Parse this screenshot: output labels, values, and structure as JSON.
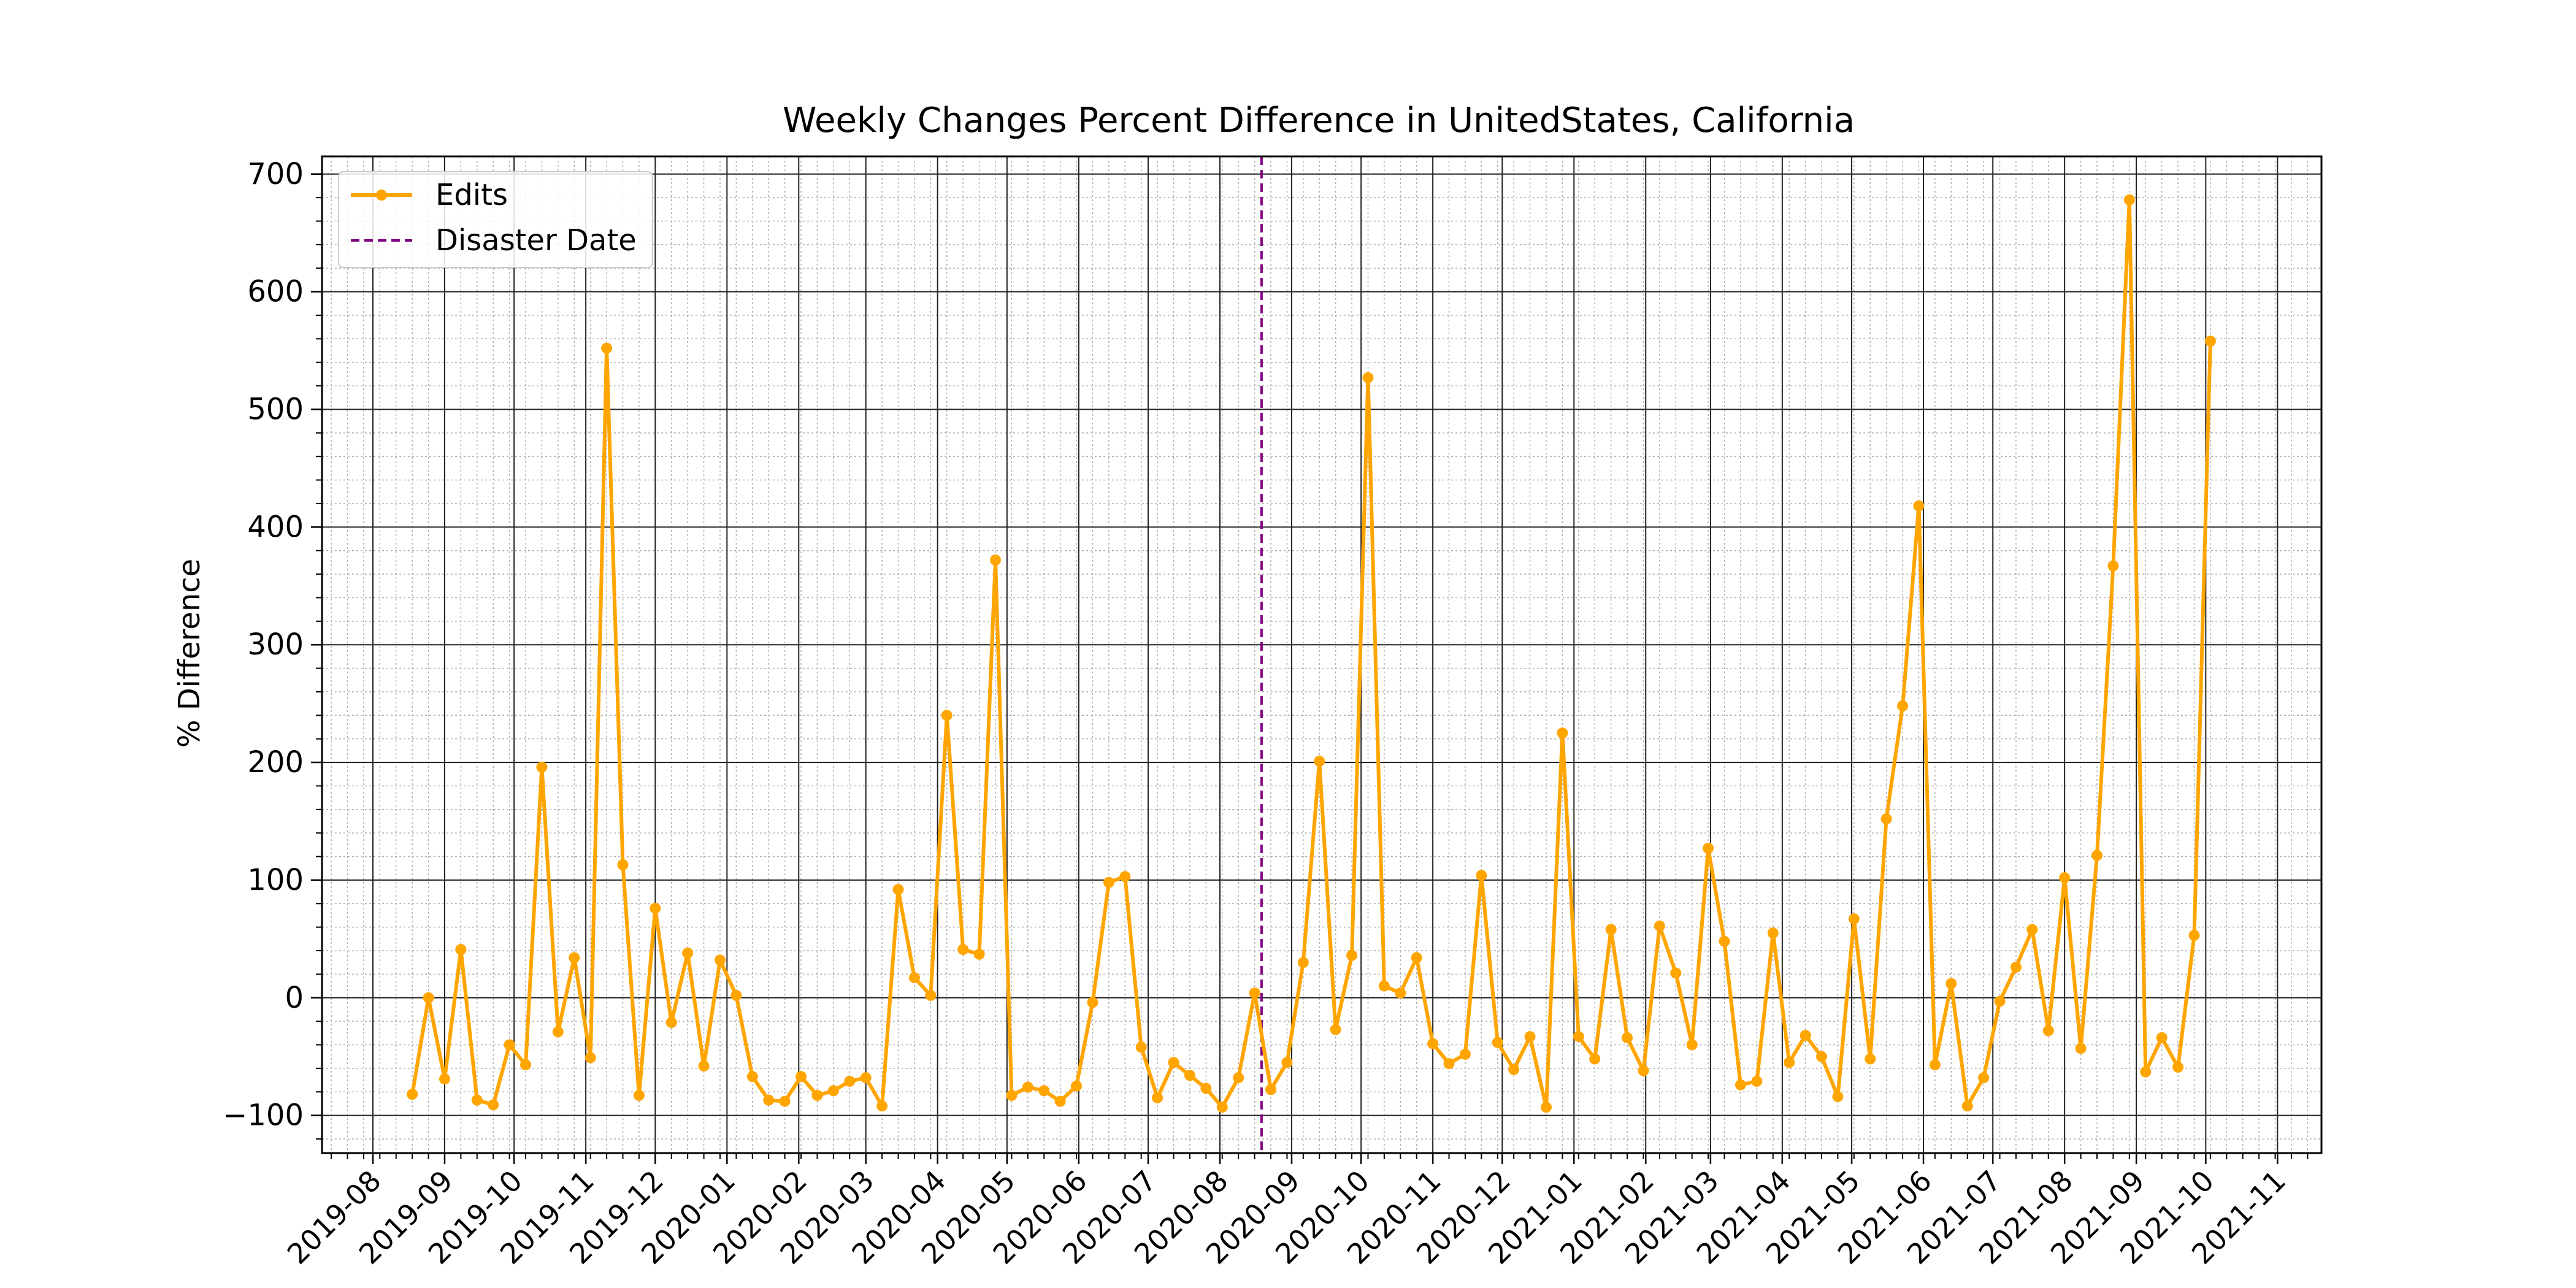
{
  "chart_data": {
    "type": "line",
    "title": "Weekly Changes Percent Difference in UnitedStates, California",
    "xlabel": "",
    "ylabel": "% Difference",
    "xlim": [
      "2019-07-10",
      "2021-11-20"
    ],
    "ylim": [
      -132,
      715
    ],
    "x_ticks": [
      "2019-08",
      "2019-09",
      "2019-10",
      "2019-11",
      "2019-12",
      "2020-01",
      "2020-02",
      "2020-03",
      "2020-04",
      "2020-05",
      "2020-06",
      "2020-07",
      "2020-08",
      "2020-09",
      "2020-10",
      "2020-11",
      "2020-12",
      "2021-01",
      "2021-02",
      "2021-03",
      "2021-04",
      "2021-05",
      "2021-06",
      "2021-07",
      "2021-08",
      "2021-09",
      "2021-10",
      "2021-11"
    ],
    "y_ticks": [
      -100,
      0,
      100,
      200,
      300,
      400,
      500,
      600,
      700
    ],
    "grid": "major and minor",
    "legend_placement": "upper left",
    "disaster_date": "2020-08-19",
    "series": [
      {
        "name": "Edits",
        "color": "#FFA500",
        "marker": "circle",
        "x": [
          "2019-08-18",
          "2019-08-25",
          "2019-09-01",
          "2019-09-08",
          "2019-09-15",
          "2019-09-22",
          "2019-09-29",
          "2019-10-06",
          "2019-10-13",
          "2019-10-20",
          "2019-10-27",
          "2019-11-03",
          "2019-11-10",
          "2019-11-17",
          "2019-11-24",
          "2019-12-01",
          "2019-12-08",
          "2019-12-15",
          "2019-12-22",
          "2019-12-29",
          "2020-01-05",
          "2020-01-12",
          "2020-01-19",
          "2020-01-26",
          "2020-02-02",
          "2020-02-09",
          "2020-02-16",
          "2020-02-23",
          "2020-03-01",
          "2020-03-08",
          "2020-03-15",
          "2020-03-22",
          "2020-03-29",
          "2020-04-05",
          "2020-04-12",
          "2020-04-19",
          "2020-04-26",
          "2020-05-03",
          "2020-05-10",
          "2020-05-17",
          "2020-05-24",
          "2020-05-31",
          "2020-06-07",
          "2020-06-14",
          "2020-06-21",
          "2020-06-28",
          "2020-07-05",
          "2020-07-12",
          "2020-07-19",
          "2020-07-26",
          "2020-08-02",
          "2020-08-09",
          "2020-08-16",
          "2020-08-23",
          "2020-08-30",
          "2020-09-06",
          "2020-09-13",
          "2020-09-20",
          "2020-09-27",
          "2020-10-04",
          "2020-10-11",
          "2020-10-18",
          "2020-10-25",
          "2020-11-01",
          "2020-11-08",
          "2020-11-15",
          "2020-11-22",
          "2020-11-29",
          "2020-12-06",
          "2020-12-13",
          "2020-12-20",
          "2020-12-27",
          "2021-01-03",
          "2021-01-10",
          "2021-01-17",
          "2021-01-24",
          "2021-01-31",
          "2021-02-07",
          "2021-02-14",
          "2021-02-21",
          "2021-02-28",
          "2021-03-07",
          "2021-03-14",
          "2021-03-21",
          "2021-03-28",
          "2021-04-04",
          "2021-04-11",
          "2021-04-18",
          "2021-04-25",
          "2021-05-02",
          "2021-05-09",
          "2021-05-16",
          "2021-05-23",
          "2021-05-30",
          "2021-06-06",
          "2021-06-13",
          "2021-06-20",
          "2021-06-27",
          "2021-07-04",
          "2021-07-11",
          "2021-07-18",
          "2021-07-25",
          "2021-08-01",
          "2021-08-08",
          "2021-08-15",
          "2021-08-22",
          "2021-08-29",
          "2021-09-05",
          "2021-09-12",
          "2021-09-19",
          "2021-09-26",
          "2021-10-03"
        ],
        "values": [
          -82,
          0,
          -69,
          41,
          -87,
          -91,
          -40,
          -57,
          196,
          -29,
          34,
          -51,
          552,
          113,
          -83,
          76,
          -21,
          38,
          -58,
          32,
          2,
          -67,
          -87,
          -88,
          -67,
          -83,
          -79,
          -71,
          -68,
          -92,
          92,
          17,
          2,
          240,
          41,
          37,
          372,
          -83,
          -76,
          -79,
          -88,
          -75,
          -4,
          98,
          103,
          -42,
          -85,
          -55,
          -66,
          -77,
          -93,
          -68,
          4,
          -78,
          -55,
          30,
          201,
          -27,
          36,
          527,
          10,
          4,
          34,
          -39,
          -56,
          -48,
          104,
          -38,
          -61,
          -33,
          -93,
          225,
          -33,
          -52,
          58,
          -34,
          -62,
          61,
          21,
          -40,
          127,
          48,
          -74,
          -71,
          55,
          -55,
          -32,
          -50,
          -84,
          67,
          -52,
          152,
          248,
          418,
          -57,
          12,
          -92,
          -68,
          -3,
          26,
          58,
          -28,
          102,
          -43,
          121,
          367,
          678,
          -63,
          -34,
          -59,
          53,
          558
        ]
      }
    ],
    "legend": [
      "Edits",
      "Disaster Date"
    ]
  }
}
